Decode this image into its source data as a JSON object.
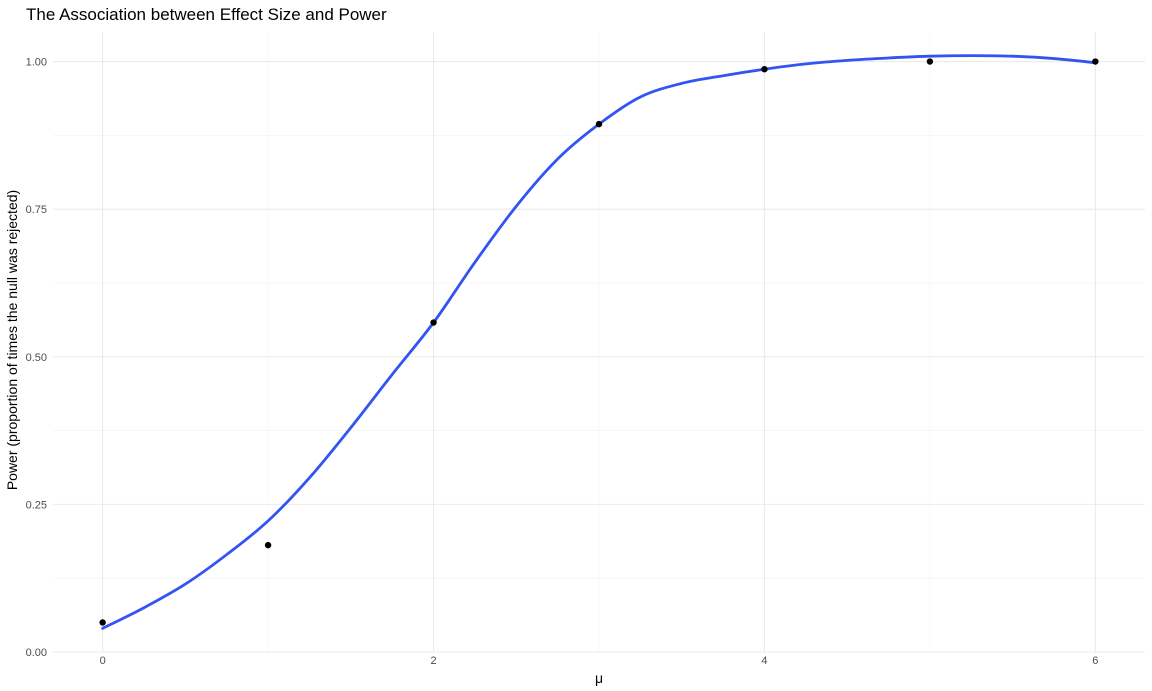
{
  "chart_data": {
    "type": "scatter",
    "title": "The Association between Effect Size and Power",
    "xlabel": "μ",
    "ylabel": "Power (proportion of times the null was rejected)",
    "xlim": [
      -0.3,
      6.3
    ],
    "ylim": [
      0.0,
      1.05
    ],
    "x_ticks": [
      0,
      2,
      4,
      6
    ],
    "x_tick_labels": [
      "0",
      "2",
      "4",
      "6"
    ],
    "x_minor_ticks": [
      1,
      3,
      5
    ],
    "y_ticks": [
      0.0,
      0.25,
      0.5,
      0.75,
      1.0
    ],
    "y_tick_labels": [
      "0.00",
      "0.25",
      "0.50",
      "0.75",
      "1.00"
    ],
    "y_minor_ticks": [
      0.125,
      0.375,
      0.625,
      0.875
    ],
    "grid": true,
    "legend": "none",
    "series": [
      {
        "kind": "points",
        "color": "#000000",
        "points": [
          {
            "x": 0,
            "y": 0.05
          },
          {
            "x": 1,
            "y": 0.181
          },
          {
            "x": 2,
            "y": 0.558
          },
          {
            "x": 3,
            "y": 0.894
          },
          {
            "x": 4,
            "y": 0.987
          },
          {
            "x": 5,
            "y": 1.0
          },
          {
            "x": 6,
            "y": 1.0
          }
        ]
      },
      {
        "kind": "smooth",
        "color": "#3354f2",
        "x": [
          0,
          0.25,
          0.5,
          0.75,
          1.0,
          1.25,
          1.5,
          1.75,
          2.0,
          2.25,
          2.5,
          2.75,
          3.0,
          3.25,
          3.5,
          3.75,
          4.0,
          4.25,
          4.5,
          4.75,
          5.0,
          5.25,
          5.5,
          5.75,
          6.0
        ],
        "y": [
          0.04,
          0.075,
          0.115,
          0.165,
          0.222,
          0.295,
          0.38,
          0.47,
          0.558,
          0.66,
          0.755,
          0.835,
          0.894,
          0.94,
          0.963,
          0.976,
          0.987,
          0.996,
          1.002,
          1.006,
          1.009,
          1.01,
          1.009,
          1.005,
          0.998
        ]
      }
    ]
  }
}
